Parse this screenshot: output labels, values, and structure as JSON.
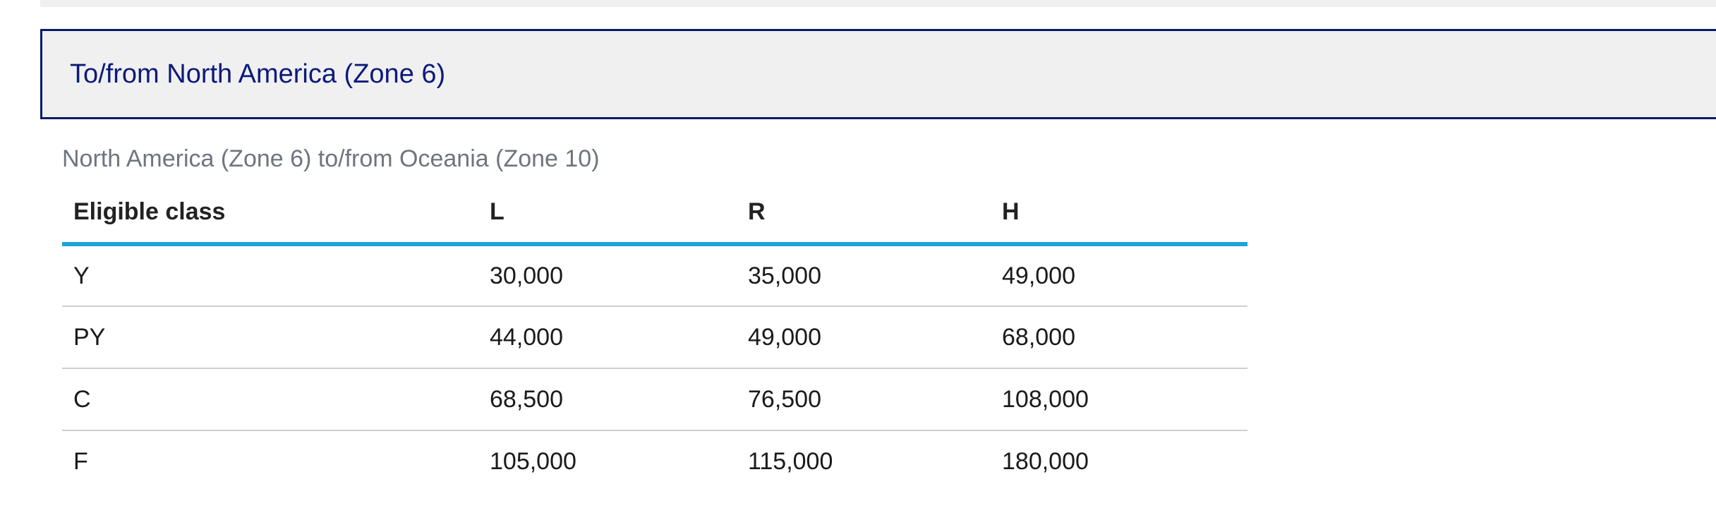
{
  "section": {
    "title": "To/from North America (Zone 6)"
  },
  "table": {
    "caption": "North America (Zone 6) to/from Oceania (Zone 10)",
    "headers": [
      "Eligible class",
      "L",
      "R",
      "H"
    ],
    "rows": [
      [
        "Y",
        "30,000",
        "35,000",
        "49,000"
      ],
      [
        "PY",
        "44,000",
        "49,000",
        "68,000"
      ],
      [
        "C",
        "68,500",
        "76,500",
        "108,000"
      ],
      [
        "F",
        "105,000",
        "115,000",
        "180,000"
      ]
    ]
  },
  "colors": {
    "header_border": "#0a1a6b",
    "header_text": "#0b1a7a",
    "header_background": "#f0f0f0",
    "table_header_rule": "#1ba3dc",
    "caption_text": "#6e7580"
  }
}
